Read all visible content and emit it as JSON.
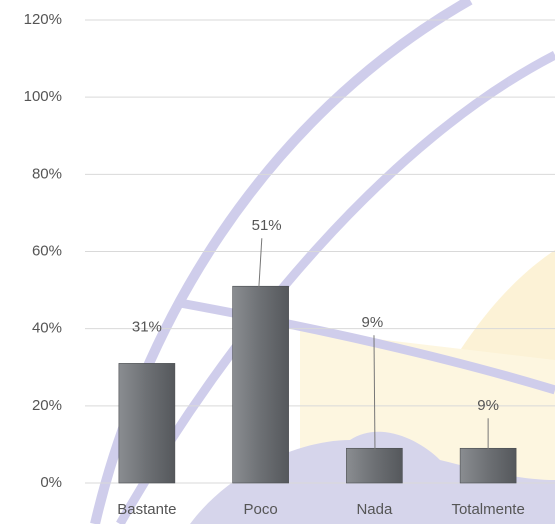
{
  "chart_data": {
    "type": "bar",
    "categories": [
      "Bastante",
      "Poco",
      "Nada",
      "Totalmente"
    ],
    "values": [
      31,
      51,
      9,
      9
    ],
    "value_labels": [
      "31%",
      "51%",
      "9%",
      "9%"
    ],
    "color": "#6d7074",
    "ylim": [
      0,
      120
    ],
    "yticks": [
      {
        "value": 0,
        "label": "0%"
      },
      {
        "value": 20,
        "label": "20%"
      },
      {
        "value": 40,
        "label": "40%"
      },
      {
        "value": 60,
        "label": "60%"
      },
      {
        "value": 80,
        "label": "80%"
      },
      {
        "value": 100,
        "label": "100%"
      },
      {
        "value": 120,
        "label": "120%"
      }
    ],
    "grid": true
  }
}
